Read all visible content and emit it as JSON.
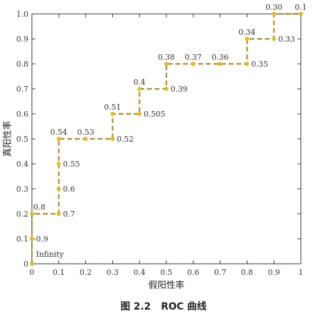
{
  "chart_data": {
    "type": "line",
    "title": "",
    "xlabel": "假阳性率",
    "ylabel": "真阳性率",
    "xlim": [
      0,
      1
    ],
    "ylim": [
      0,
      1
    ],
    "xticks": [
      0,
      0.1,
      0.2,
      0.3,
      0.4,
      0.5,
      0.6,
      0.7,
      0.8,
      0.9,
      1
    ],
    "yticks": [
      0,
      0.1,
      0.2,
      0.3,
      0.4,
      0.5,
      0.6,
      0.7,
      0.8,
      0.9,
      1.0
    ],
    "xtick_labels": [
      "0",
      "0.1",
      "0.2",
      "0.3",
      "0.4",
      "0.5",
      "0.6",
      "0.7",
      "0.8",
      "0.9",
      "1"
    ],
    "ytick_labels": [
      "0",
      "0.1",
      "0.2",
      "0.3",
      "0.4",
      "0.5",
      "0.6",
      "0.7",
      "0.8",
      "0.9",
      "1.0"
    ],
    "line_color": "#b58a2e",
    "marker_color": "#e8c21a",
    "line_style": "dashed",
    "points": [
      {
        "x": 0.0,
        "y": 0.0,
        "label": "Infinity",
        "side": "right"
      },
      {
        "x": 0.0,
        "y": 0.1,
        "label": "0.9",
        "side": "right"
      },
      {
        "x": 0.0,
        "y": 0.2,
        "label": "0.8",
        "side": "top"
      },
      {
        "x": 0.1,
        "y": 0.2,
        "label": "0.7",
        "side": "right"
      },
      {
        "x": 0.1,
        "y": 0.3,
        "label": "0.6",
        "side": "right"
      },
      {
        "x": 0.1,
        "y": 0.4,
        "label": "0.55",
        "side": "right"
      },
      {
        "x": 0.1,
        "y": 0.5,
        "label": "0.54",
        "side": "top"
      },
      {
        "x": 0.2,
        "y": 0.5,
        "label": "0.53",
        "side": "top"
      },
      {
        "x": 0.3,
        "y": 0.5,
        "label": "0.52",
        "side": "right"
      },
      {
        "x": 0.3,
        "y": 0.6,
        "label": "0.51",
        "side": "top"
      },
      {
        "x": 0.4,
        "y": 0.6,
        "label": "0.505",
        "side": "right"
      },
      {
        "x": 0.4,
        "y": 0.7,
        "label": "0.4",
        "side": "top"
      },
      {
        "x": 0.5,
        "y": 0.7,
        "label": "0.39",
        "side": "right"
      },
      {
        "x": 0.5,
        "y": 0.8,
        "label": "0.38",
        "side": "top"
      },
      {
        "x": 0.6,
        "y": 0.8,
        "label": "0.37",
        "side": "top"
      },
      {
        "x": 0.7,
        "y": 0.8,
        "label": "0.36",
        "side": "top"
      },
      {
        "x": 0.8,
        "y": 0.8,
        "label": "0.35",
        "side": "right"
      },
      {
        "x": 0.8,
        "y": 0.9,
        "label": "0.34",
        "side": "top"
      },
      {
        "x": 0.9,
        "y": 0.9,
        "label": "0.33",
        "side": "right"
      },
      {
        "x": 0.9,
        "y": 1.0,
        "label": "0.30",
        "side": "top"
      },
      {
        "x": 1.0,
        "y": 1.0,
        "label": "0.1",
        "side": "top"
      }
    ]
  },
  "caption": "图 2.2   ROC 曲线"
}
